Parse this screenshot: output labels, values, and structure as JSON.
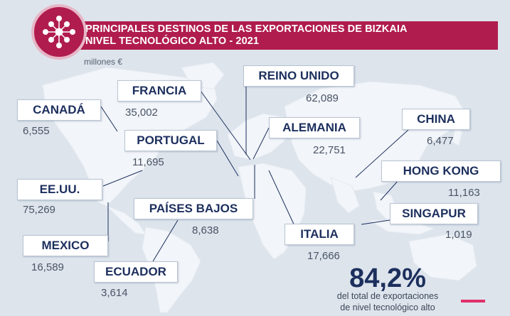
{
  "header": {
    "title_line1": "PRINCIPALES DESTINOS DE LAS EXPORTACIONES DE BIZKAIA",
    "title_line2": "NIVEL TECNOLÓGICO ALTO - 2021"
  },
  "unit": "millones €",
  "countries": [
    {
      "id": "canada",
      "label": "CANADÁ",
      "value": "6,555"
    },
    {
      "id": "francia",
      "label": "FRANCIA",
      "value": "35,002"
    },
    {
      "id": "reino-unido",
      "label": "REINO UNIDO",
      "value": "62,089"
    },
    {
      "id": "portugal",
      "label": "PORTUGAL",
      "value": "11,695"
    },
    {
      "id": "alemania",
      "label": "ALEMANIA",
      "value": "22,751"
    },
    {
      "id": "china",
      "label": "CHINA",
      "value": "6,477"
    },
    {
      "id": "eeuu",
      "label": "EE.UU.",
      "value": "75,269"
    },
    {
      "id": "hong-kong",
      "label": "HONG KONG",
      "value": "11,163"
    },
    {
      "id": "paises-bajos",
      "label": "PAÍSES BAJOS",
      "value": "8,638"
    },
    {
      "id": "singapur",
      "label": "SINGAPUR",
      "value": "1,019"
    },
    {
      "id": "mexico",
      "label": "MEXICO",
      "value": "16,589"
    },
    {
      "id": "italia",
      "label": "ITALIA",
      "value": "17,666"
    },
    {
      "id": "ecuador",
      "label": "ECUADOR",
      "value": "3,614"
    }
  ],
  "summary": {
    "percent": "84,2%",
    "caption_line1": "del total de exportaciones",
    "caption_line2": "de nivel tecnológico alto"
  },
  "colors": {
    "accent": "#b01c4e",
    "label_text": "#1c2f5d",
    "map_land": "#f2f5f9",
    "background": "#dde4ec"
  },
  "icons": [
    "network-logo-icon"
  ]
}
